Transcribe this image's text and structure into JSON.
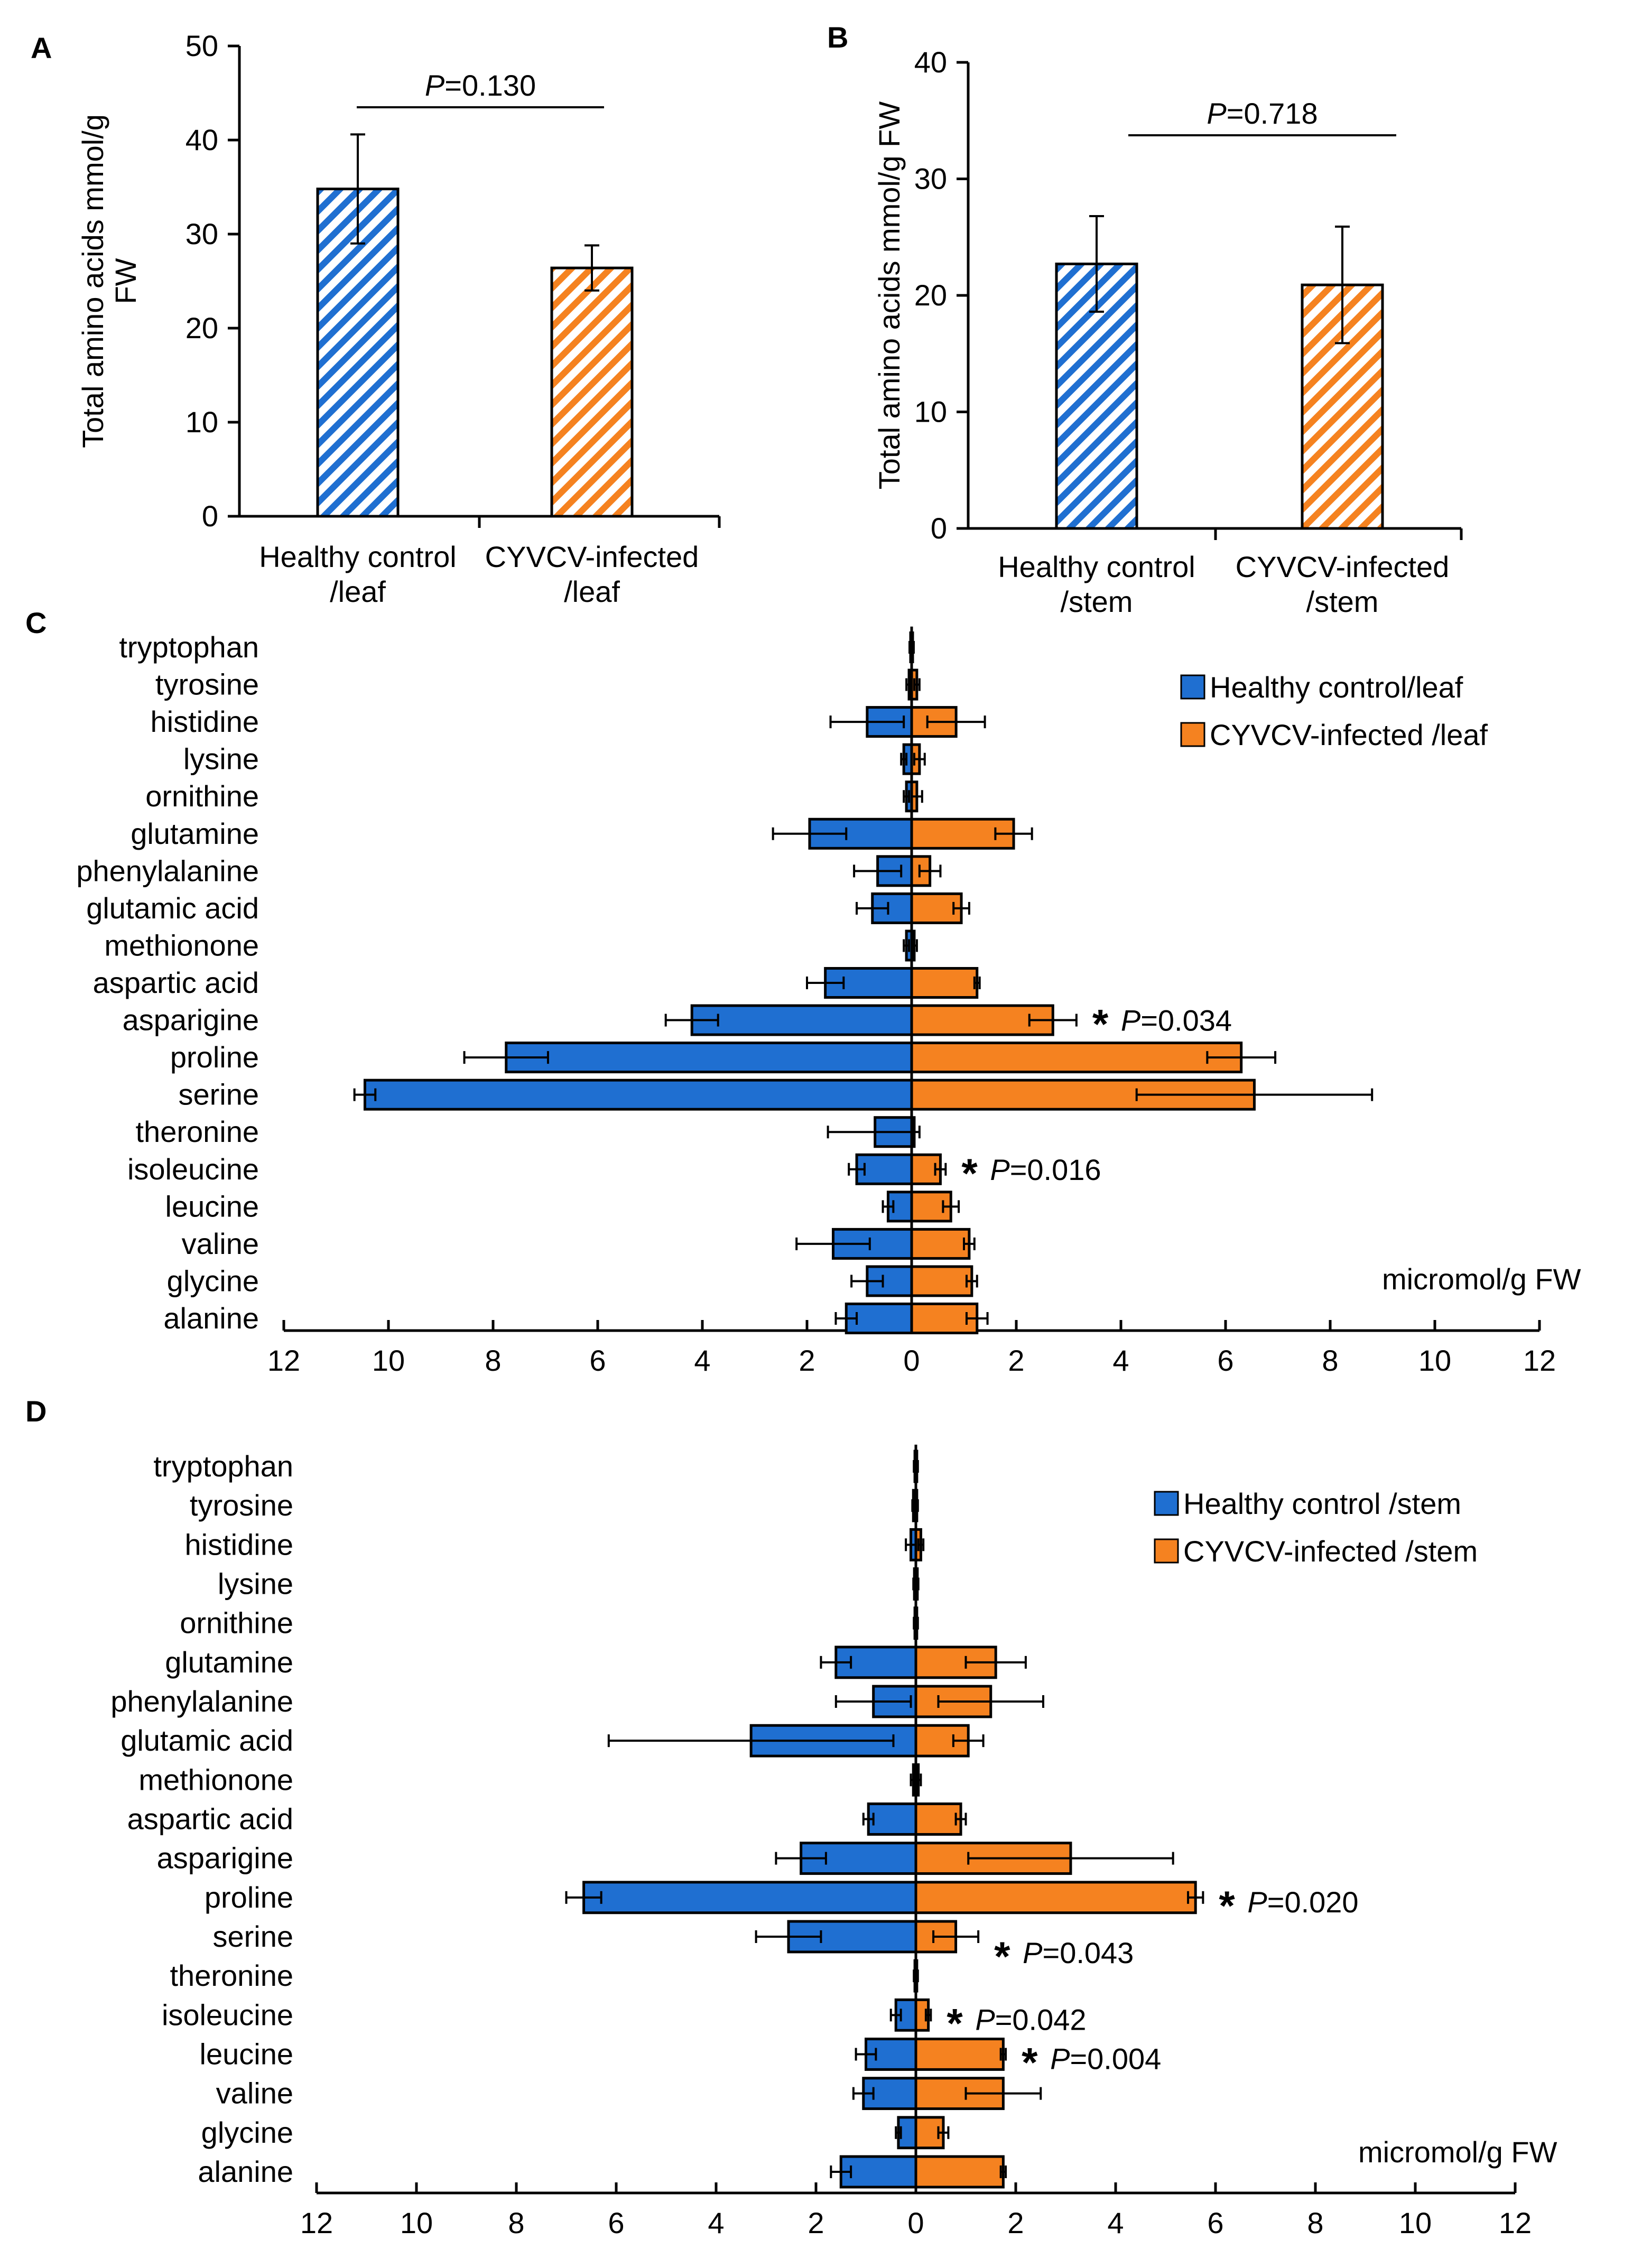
{
  "colors": {
    "healthy": "#1f6fd1",
    "infected": "#f58220",
    "hatch_bg": "#ffffff",
    "text": "#000000"
  },
  "chart_data": [
    {
      "panel": "A",
      "type": "bar",
      "categories": [
        "Healthy control\n/leaf",
        "CYVCV-infected\n/leaf"
      ],
      "values": [
        34.8,
        26.4
      ],
      "errors": [
        5.8,
        2.4
      ],
      "ylabel": "Total amino acids mmol/g FW",
      "ylim": [
        0,
        50
      ],
      "yticks": [
        0,
        10,
        20,
        30,
        40,
        50
      ],
      "annotation": {
        "prefix": "P",
        "value": "=0.130"
      },
      "pattern": "hatched"
    },
    {
      "panel": "B",
      "type": "bar",
      "categories": [
        "Healthy control\n/stem",
        "CYVCV-infected\n/stem"
      ],
      "values": [
        22.7,
        20.9
      ],
      "errors": [
        4.1,
        5.0
      ],
      "ylabel": "Total amino acids mmol/g FW",
      "ylim": [
        0,
        40
      ],
      "yticks": [
        0,
        10,
        20,
        30,
        40
      ],
      "annotation": {
        "prefix": "P",
        "value": "=0.718"
      },
      "pattern": "hatched"
    },
    {
      "panel": "C",
      "type": "bar",
      "orientation": "horizontal-diverging",
      "xlabel": "micromol/g FW",
      "xlim": [
        -12,
        12
      ],
      "xticks": [
        "12",
        "10",
        "8",
        "6",
        "4",
        "2",
        "0",
        "2",
        "4",
        "6",
        "8",
        "10",
        "12"
      ],
      "categories": [
        "tryptophan",
        "tyrosine",
        "histidine",
        "lysine",
        "ornithine",
        "glutamine",
        "phenylalanine",
        "glutamic acid",
        "methionone",
        "aspartic acid",
        "asparigine",
        "proline",
        "serine",
        "theronine",
        "isoleucine",
        "leucine",
        "valine",
        "glycine",
        "alanine"
      ],
      "series": [
        {
          "name": "Healthy control/leaf",
          "values": [
            0.02,
            0.05,
            0.85,
            0.15,
            0.1,
            1.95,
            0.65,
            0.75,
            0.1,
            1.65,
            4.2,
            7.75,
            10.45,
            0.7,
            1.05,
            0.45,
            1.5,
            0.85,
            1.25
          ],
          "errors": [
            0.02,
            0.05,
            0.7,
            0.05,
            0.05,
            0.7,
            0.45,
            0.3,
            0.05,
            0.35,
            0.5,
            0.8,
            0.2,
            0.9,
            0.15,
            0.1,
            0.7,
            0.3,
            0.2
          ]
        },
        {
          "name": "CYVCV-infected /leaf",
          "values": [
            0.02,
            0.1,
            0.85,
            0.15,
            0.1,
            1.95,
            0.35,
            0.95,
            0.05,
            1.25,
            2.7,
            6.3,
            6.55,
            0.05,
            0.55,
            0.75,
            1.1,
            1.15,
            1.25
          ],
          "errors": [
            0.02,
            0.05,
            0.55,
            0.1,
            0.1,
            0.35,
            0.2,
            0.15,
            0.05,
            0.05,
            0.45,
            0.65,
            2.25,
            0.1,
            0.1,
            0.15,
            0.1,
            0.1,
            0.2
          ]
        }
      ],
      "annotations": [
        {
          "category": "asparigine",
          "text": "=0.034",
          "prefix": "P"
        },
        {
          "category": "isoleucine",
          "text": "=0.016",
          "prefix": "P"
        }
      ]
    },
    {
      "panel": "D",
      "type": "bar",
      "orientation": "horizontal-diverging",
      "xlabel": "micromol/g FW",
      "xlim": [
        -12,
        12
      ],
      "xticks": [
        "12",
        "10",
        "8",
        "6",
        "4",
        "2",
        "0",
        "2",
        "4",
        "6",
        "8",
        "10",
        "12"
      ],
      "categories": [
        "tryptophan",
        "tyrosine",
        "histidine",
        "lysine",
        "ornithine",
        "glutamine",
        "phenylalanine",
        "glutamic acid",
        "methionone",
        "aspartic acid",
        "asparigine",
        "proline",
        "serine",
        "theronine",
        "isoleucine",
        "leucine",
        "valine",
        "glycine",
        "alanine"
      ],
      "series": [
        {
          "name": "Healthy control /stem",
          "values": [
            0.02,
            0.05,
            0.1,
            0.03,
            0.02,
            1.6,
            0.85,
            3.3,
            0.05,
            0.95,
            2.3,
            6.65,
            2.55,
            0.02,
            0.4,
            1.0,
            1.05,
            0.35,
            1.5
          ],
          "errors": [
            0.02,
            0.02,
            0.1,
            0.02,
            0.02,
            0.3,
            0.75,
            2.85,
            0.05,
            0.1,
            0.5,
            0.35,
            0.65,
            0.02,
            0.1,
            0.2,
            0.2,
            0.05,
            0.2
          ]
        },
        {
          "name": "CYVCV-infected /stem",
          "values": [
            0.02,
            0.02,
            0.1,
            0.03,
            0.02,
            1.6,
            1.5,
            1.05,
            0.05,
            0.9,
            3.1,
            5.6,
            0.8,
            0.02,
            0.25,
            1.75,
            1.75,
            0.55,
            1.75
          ],
          "errors": [
            0.02,
            0.02,
            0.05,
            0.02,
            0.02,
            0.6,
            1.05,
            0.3,
            0.05,
            0.1,
            2.05,
            0.15,
            0.45,
            0.02,
            0.05,
            0.05,
            0.75,
            0.1,
            0.05
          ]
        }
      ],
      "annotations": [
        {
          "category": "proline",
          "text": "=0.020",
          "prefix": "P"
        },
        {
          "category": "serine",
          "text": "=0.043",
          "prefix": "P"
        },
        {
          "category": "isoleucine",
          "text": "=0.042",
          "prefix": "P"
        },
        {
          "category": "leucine",
          "text": "=0.004",
          "prefix": "P"
        }
      ]
    }
  ]
}
